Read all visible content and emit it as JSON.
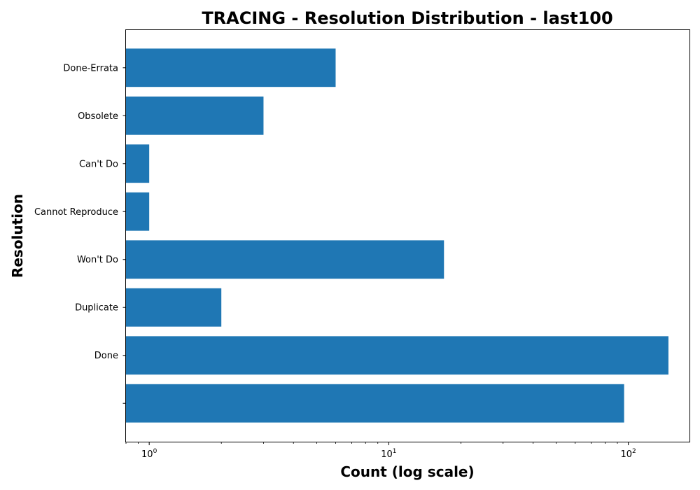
{
  "chart_data": {
    "type": "bar",
    "orientation": "horizontal",
    "title": "TRACING - Resolution Distribution - last100",
    "xlabel": "Count (log scale)",
    "ylabel": "Resolution",
    "x_scale": "log",
    "xlim": [
      0.8,
      180
    ],
    "x_ticks": [
      {
        "value": 1,
        "base": "10",
        "exp": "0"
      },
      {
        "value": 10,
        "base": "10",
        "exp": "1"
      },
      {
        "value": 100,
        "base": "10",
        "exp": "2"
      }
    ],
    "categories": [
      "",
      "Done",
      "Duplicate",
      "Won't Do",
      "Cannot Reproduce",
      "Can't Do",
      "Obsolete",
      "Done-Errata"
    ],
    "values": [
      96,
      147,
      2,
      17,
      1,
      1,
      3,
      6
    ],
    "bar_color": "#1f77b4",
    "grid": false,
    "legend": "none"
  }
}
